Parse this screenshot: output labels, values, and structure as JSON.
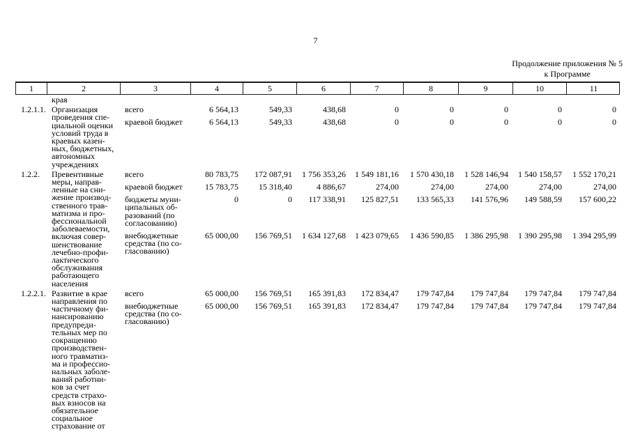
{
  "page": {
    "number": "7",
    "continuation_line1": "Продолжение приложения № 5",
    "continuation_line2": "к Программе"
  },
  "table": {
    "header_cells": [
      "1",
      "2",
      "3",
      "4",
      "5",
      "6",
      "7",
      "8",
      "9",
      "10",
      "11"
    ],
    "carryover": "края",
    "rows": [
      {
        "code": "1.2.1.1.",
        "description": "Организация\nпроведения спе-\nциальной оценки\nусловий труда в\nкраевых казен-\nных, бюджетных,\nавтономных\nучреждениях",
        "sources": [
          {
            "label": "всего",
            "values": [
              "6 564,13",
              "549,33",
              "438,68",
              "0",
              "0",
              "0",
              "0",
              "0"
            ]
          },
          {
            "label": "краевой бюджет",
            "values": [
              "6 564,13",
              "549,33",
              "438,68",
              "0",
              "0",
              "0",
              "0",
              "0"
            ]
          }
        ]
      },
      {
        "code": "1.2.2.",
        "description": "Превентивные\nмеры, направ-\nленные на сни-\nжение производ-\nственного трав-\nматизма и про-\nфессиональной\nзаболеваемости,\nвключая совер-\nшенствование\nлечебно-профи-\nлактического\nобслуживания\nработающего\nнаселения",
        "sources": [
          {
            "label": "всего",
            "values": [
              "80 783,75",
              "172 087,91",
              "1 756 353,26",
              "1 549 181,16",
              "1 570 430,18",
              "1 528 146,94",
              "1 540 158,57",
              "1 552 170,21"
            ]
          },
          {
            "label": "краевой бюджет",
            "values": [
              "15 783,75",
              "15 318,40",
              "4 886,67",
              "274,00",
              "274,00",
              "274,00",
              "274,00",
              "274,00"
            ]
          },
          {
            "label": "бюджеты муни-\nципальных об-\nразований (по\nсогласованию)",
            "values": [
              "0",
              "0",
              "117 338,91",
              "125 827,51",
              "133 565,33",
              "141 576,96",
              "149 588,59",
              "157 600,22"
            ]
          },
          {
            "label": "внебюджетные\nсредства (по со-\nгласованию)",
            "values": [
              "65 000,00",
              "156 769,51",
              "1 634 127,68",
              "1 423 079,65",
              "1 436 590,85",
              "1 386 295,98",
              "1 390 295,98",
              "1 394 295,99"
            ]
          }
        ]
      },
      {
        "code": "1.2.2.1.",
        "description": "Развитие в крае\nнаправления по\nчастичному фи-\nнансированию\nпредупреди-\nтельных мер по\nсокращению\nпроизводствен-\nного травматиз-\nма и профессио-\nнальных заболе-\nваний работни-\nков за счет\nсредств страхо-\nвых взносов на\nобязательное\nсоциальное\nстрахование от",
        "sources": [
          {
            "label": "всего",
            "values": [
              "65 000,00",
              "156 769,51",
              "165 391,83",
              "172 834,47",
              "179 747,84",
              "179 747,84",
              "179 747,84",
              "179 747,84"
            ]
          },
          {
            "label": "внебюджетные\nсредства (по со-\nгласованию)",
            "values": [
              "65 000,00",
              "156 769,51",
              "165 391,83",
              "172 834,47",
              "179 747,84",
              "179 747,84",
              "179 747,84",
              "179 747,84"
            ]
          }
        ]
      }
    ]
  }
}
